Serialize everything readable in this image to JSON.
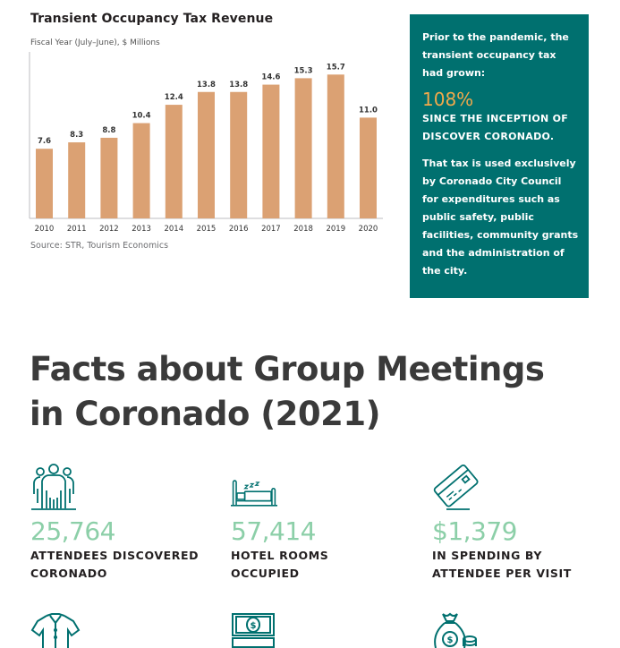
{
  "chart_data": {
    "type": "bar",
    "title": "Transient Occupancy Tax Revenue",
    "subtitle": "Fiscal Year (July–June), $ Millions",
    "categories": [
      "2010",
      "2011",
      "2012",
      "2013",
      "2014",
      "2015",
      "2016",
      "2017",
      "2018",
      "2019",
      "2020"
    ],
    "values": [
      7.6,
      8.3,
      8.8,
      10.4,
      12.4,
      13.8,
      13.8,
      14.6,
      15.3,
      15.7,
      11.0
    ],
    "value_labels": [
      "7.6",
      "8.3",
      "8.8",
      "10.4",
      "12.4",
      "13.8",
      "13.8",
      "14.6",
      "15.3",
      "15.7",
      "11.0"
    ],
    "xlabel": "",
    "ylabel": "$ Millions",
    "ylim": [
      0,
      17
    ],
    "grid": false,
    "bar_color": "#dba173",
    "source": "Source: STR, Tourism Economics"
  },
  "callout": {
    "intro": "Prior to the pandemic, the transient occupancy tax had grown:",
    "percent": "108%",
    "since": "SINCE THE INCEPTION OF DISCOVER CORONADO.",
    "body": "That tax is used exclusively by Coronado City Council for expenditures such as public safety, public facilities, community grants and the administration of the city.",
    "bg_color": "#00706f",
    "accent_color": "#f2a94b"
  },
  "section": {
    "heading_line1": "Facts about Group Meetings",
    "heading_line2": "in Coronado (2021)"
  },
  "facts": [
    {
      "icon": "group-people-icon",
      "value": "25,764",
      "label_line1": "ATTENDEES DISCOVERED",
      "label_line2": "CORONADO"
    },
    {
      "icon": "hotel-bed-icon",
      "value": "57,414",
      "label_line1": "HOTEL ROOMS",
      "label_line2": "OCCUPIED"
    },
    {
      "icon": "credit-card-icon",
      "value": "$1,379",
      "label_line1": "IN SPENDING BY",
      "label_line2": "ATTENDEE PER VISIT"
    }
  ],
  "next_row_icons": [
    "shirt-icon",
    "cash-bill-icon",
    "money-bag-icon"
  ],
  "colors": {
    "icon_teal": "#00706f",
    "value_green": "#8ccfa8"
  }
}
